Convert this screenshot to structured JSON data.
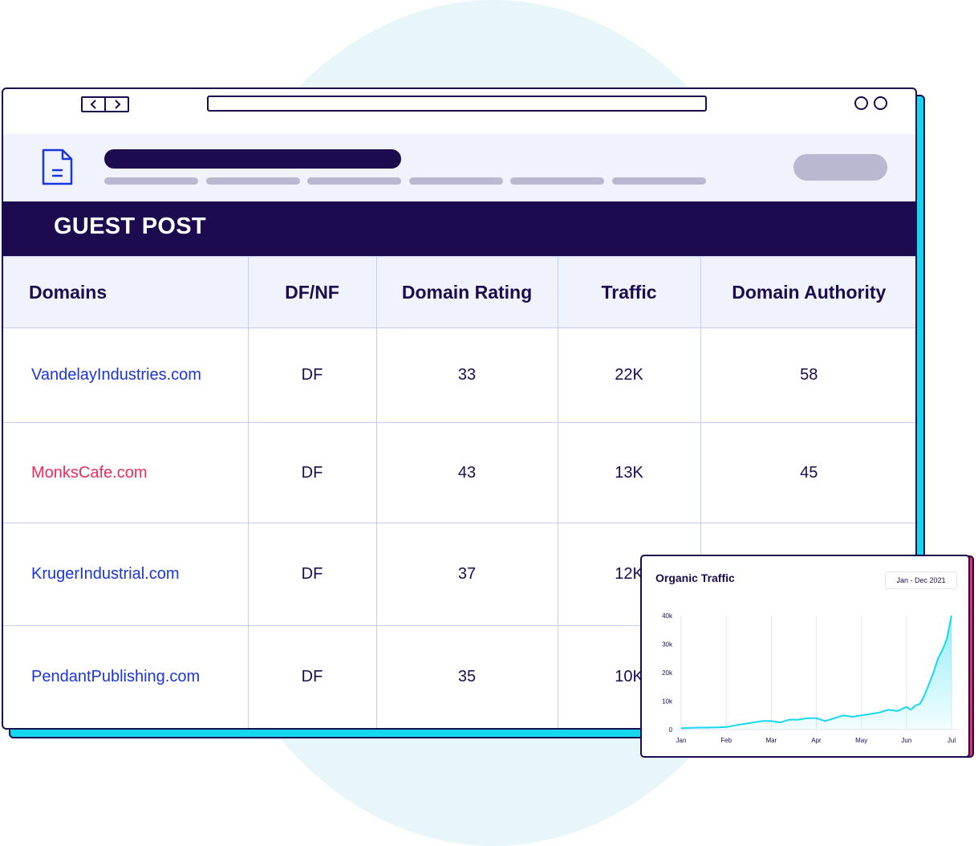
{
  "banner": {
    "title": "GUEST POST"
  },
  "table": {
    "columns": [
      "Domains",
      "DF/NF",
      "Domain Rating",
      "Traffic",
      "Domain Authority"
    ],
    "rows": [
      {
        "domain": "VandelayIndustries.com",
        "df": "DF",
        "rating": "33",
        "traffic": "22K",
        "authority": "58"
      },
      {
        "domain": "MonksCafe.com",
        "df": "DF",
        "rating": "43",
        "traffic": "13K",
        "authority": "45"
      },
      {
        "domain": "KrugerIndustrial.com",
        "df": "DF",
        "rating": "37",
        "traffic": "12K",
        "authority": ""
      },
      {
        "domain": "PendantPublishing.com",
        "df": "DF",
        "rating": "35",
        "traffic": "10K",
        "authority": ""
      }
    ]
  },
  "colors": {
    "navy": "#1d0b4f",
    "cyan": "#14d9ee",
    "pink": "#ee2b5b",
    "link_blue": "#1a35de",
    "header_bg": "#f0f3fc"
  },
  "icons": [
    "chevron-left-icon",
    "chevron-right-icon",
    "document-icon"
  ],
  "chart": {
    "title": "Organic Traffic",
    "date_range": "Jan - Dec 2021",
    "chart_data": {
      "type": "area",
      "x_ticks": [
        "Jan",
        "Feb",
        "Mar",
        "Apr",
        "May",
        "Jun",
        "Jul"
      ],
      "y_ticks": [
        "0",
        "10k",
        "20k",
        "30k",
        "40k"
      ],
      "ylim": [
        0,
        40000
      ],
      "series": [
        {
          "x": [
            0,
            0.2,
            0.4,
            0.6,
            0.8,
            1.0,
            1.2,
            1.4,
            1.6,
            1.8,
            2.0,
            2.2,
            2.4,
            2.6,
            2.8,
            3.0,
            3.2,
            3.4,
            3.6,
            3.8,
            4.0,
            4.2,
            4.4,
            4.6,
            4.8,
            5.0,
            5.1,
            5.2,
            5.3,
            5.4,
            5.5,
            5.6,
            5.7,
            5.8,
            5.9,
            6.0
          ],
          "values": [
            500,
            600,
            700,
            700,
            800,
            900,
            1500,
            2000,
            2500,
            3000,
            3000,
            2500,
            3500,
            3500,
            4000,
            4000,
            3000,
            4000,
            5000,
            4500,
            5000,
            5500,
            6000,
            7000,
            6500,
            8000,
            7000,
            8500,
            9000,
            12000,
            16000,
            20000,
            25000,
            28000,
            32000,
            40000
          ]
        }
      ]
    }
  }
}
